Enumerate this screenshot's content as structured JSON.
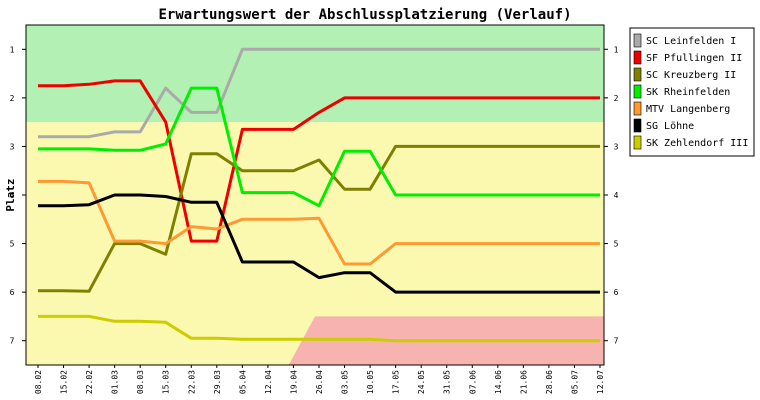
{
  "chart_data": {
    "type": "line",
    "title": "Erwartungswert der Abschlussplatzierung (Verlauf)",
    "xlabel": "",
    "ylabel": "Platz",
    "ylim": [
      0.5,
      7.5
    ],
    "y_inverted": true,
    "y_ticks": [
      "1",
      "2",
      "3",
      "4",
      "5",
      "6",
      "7"
    ],
    "grid": false,
    "legend_position": "right",
    "x": [
      "08.02",
      "15.02",
      "22.02",
      "01.03",
      "08.03",
      "15.03",
      "22.03",
      "29.03",
      "05.04",
      "12.04",
      "19.04",
      "26.04",
      "03.05",
      "10.05",
      "17.05",
      "24.05",
      "31.05",
      "07.06",
      "14.06",
      "21.06",
      "28.06",
      "05.07",
      "12.07"
    ],
    "bands": [
      {
        "name": "promotion",
        "color": "#b3f0b3",
        "from_place": 0.5,
        "to_place": 2.5
      },
      {
        "name": "middle",
        "color": "#fbf9b0",
        "from_place": 2.5,
        "to_place": 7.5
      },
      {
        "name": "relegation",
        "color": "#f7b3b0",
        "polygon": [
          [
            10.0,
            7.5
          ],
          [
            11.0,
            6.5
          ],
          [
            22.0,
            6.5
          ],
          [
            22.0,
            7.5
          ]
        ]
      }
    ],
    "series": [
      {
        "name": "SC Leinfelden I",
        "color": "#aaaaaa",
        "values": [
          2.8,
          2.8,
          2.8,
          2.7,
          2.7,
          1.8,
          2.3,
          2.3,
          1.0,
          1.0,
          1.0,
          1.0,
          1.0,
          1.0,
          1.0,
          1.0,
          1.0,
          1.0,
          1.0,
          1.0,
          1.0,
          1.0,
          1.0
        ]
      },
      {
        "name": "SF Pfullingen II",
        "color": "#ee0000",
        "values": [
          1.75,
          1.75,
          1.72,
          1.65,
          1.65,
          2.5,
          4.95,
          4.95,
          2.65,
          2.65,
          2.65,
          2.3,
          2.0,
          2.0,
          2.0,
          2.0,
          2.0,
          2.0,
          2.0,
          2.0,
          2.0,
          2.0,
          2.0
        ]
      },
      {
        "name": "SC Kreuzberg II",
        "color": "#808000",
        "values": [
          5.97,
          5.97,
          5.98,
          5.0,
          5.0,
          5.22,
          3.15,
          3.15,
          3.5,
          3.5,
          3.5,
          3.28,
          3.88,
          3.88,
          3.0,
          3.0,
          3.0,
          3.0,
          3.0,
          3.0,
          3.0,
          3.0,
          3.0
        ]
      },
      {
        "name": "SK Rheinfelden",
        "color": "#00ee00",
        "values": [
          3.05,
          3.05,
          3.05,
          3.08,
          3.08,
          2.95,
          1.8,
          1.8,
          3.95,
          3.95,
          3.95,
          4.22,
          3.1,
          3.1,
          4.0,
          4.0,
          4.0,
          4.0,
          4.0,
          4.0,
          4.0,
          4.0,
          4.0
        ]
      },
      {
        "name": "MTV Langenberg",
        "color": "#ff9933",
        "values": [
          3.72,
          3.72,
          3.75,
          4.95,
          4.95,
          5.0,
          4.65,
          4.7,
          4.5,
          4.5,
          4.5,
          4.48,
          5.42,
          5.42,
          5.0,
          5.0,
          5.0,
          5.0,
          5.0,
          5.0,
          5.0,
          5.0,
          5.0
        ]
      },
      {
        "name": "SG Löhne",
        "color": "#000000",
        "values": [
          4.22,
          4.22,
          4.2,
          4.0,
          4.0,
          4.03,
          4.15,
          4.15,
          5.38,
          5.38,
          5.38,
          5.7,
          5.6,
          5.6,
          6.0,
          6.0,
          6.0,
          6.0,
          6.0,
          6.0,
          6.0,
          6.0,
          6.0
        ]
      },
      {
        "name": "SK Zehlendorf III",
        "color": "#cccc00",
        "values": [
          6.5,
          6.5,
          6.5,
          6.6,
          6.6,
          6.62,
          6.95,
          6.95,
          6.97,
          6.97,
          6.97,
          6.97,
          6.97,
          6.97,
          7.0,
          7.0,
          7.0,
          7.0,
          7.0,
          7.0,
          7.0,
          7.0,
          7.0
        ]
      }
    ]
  }
}
